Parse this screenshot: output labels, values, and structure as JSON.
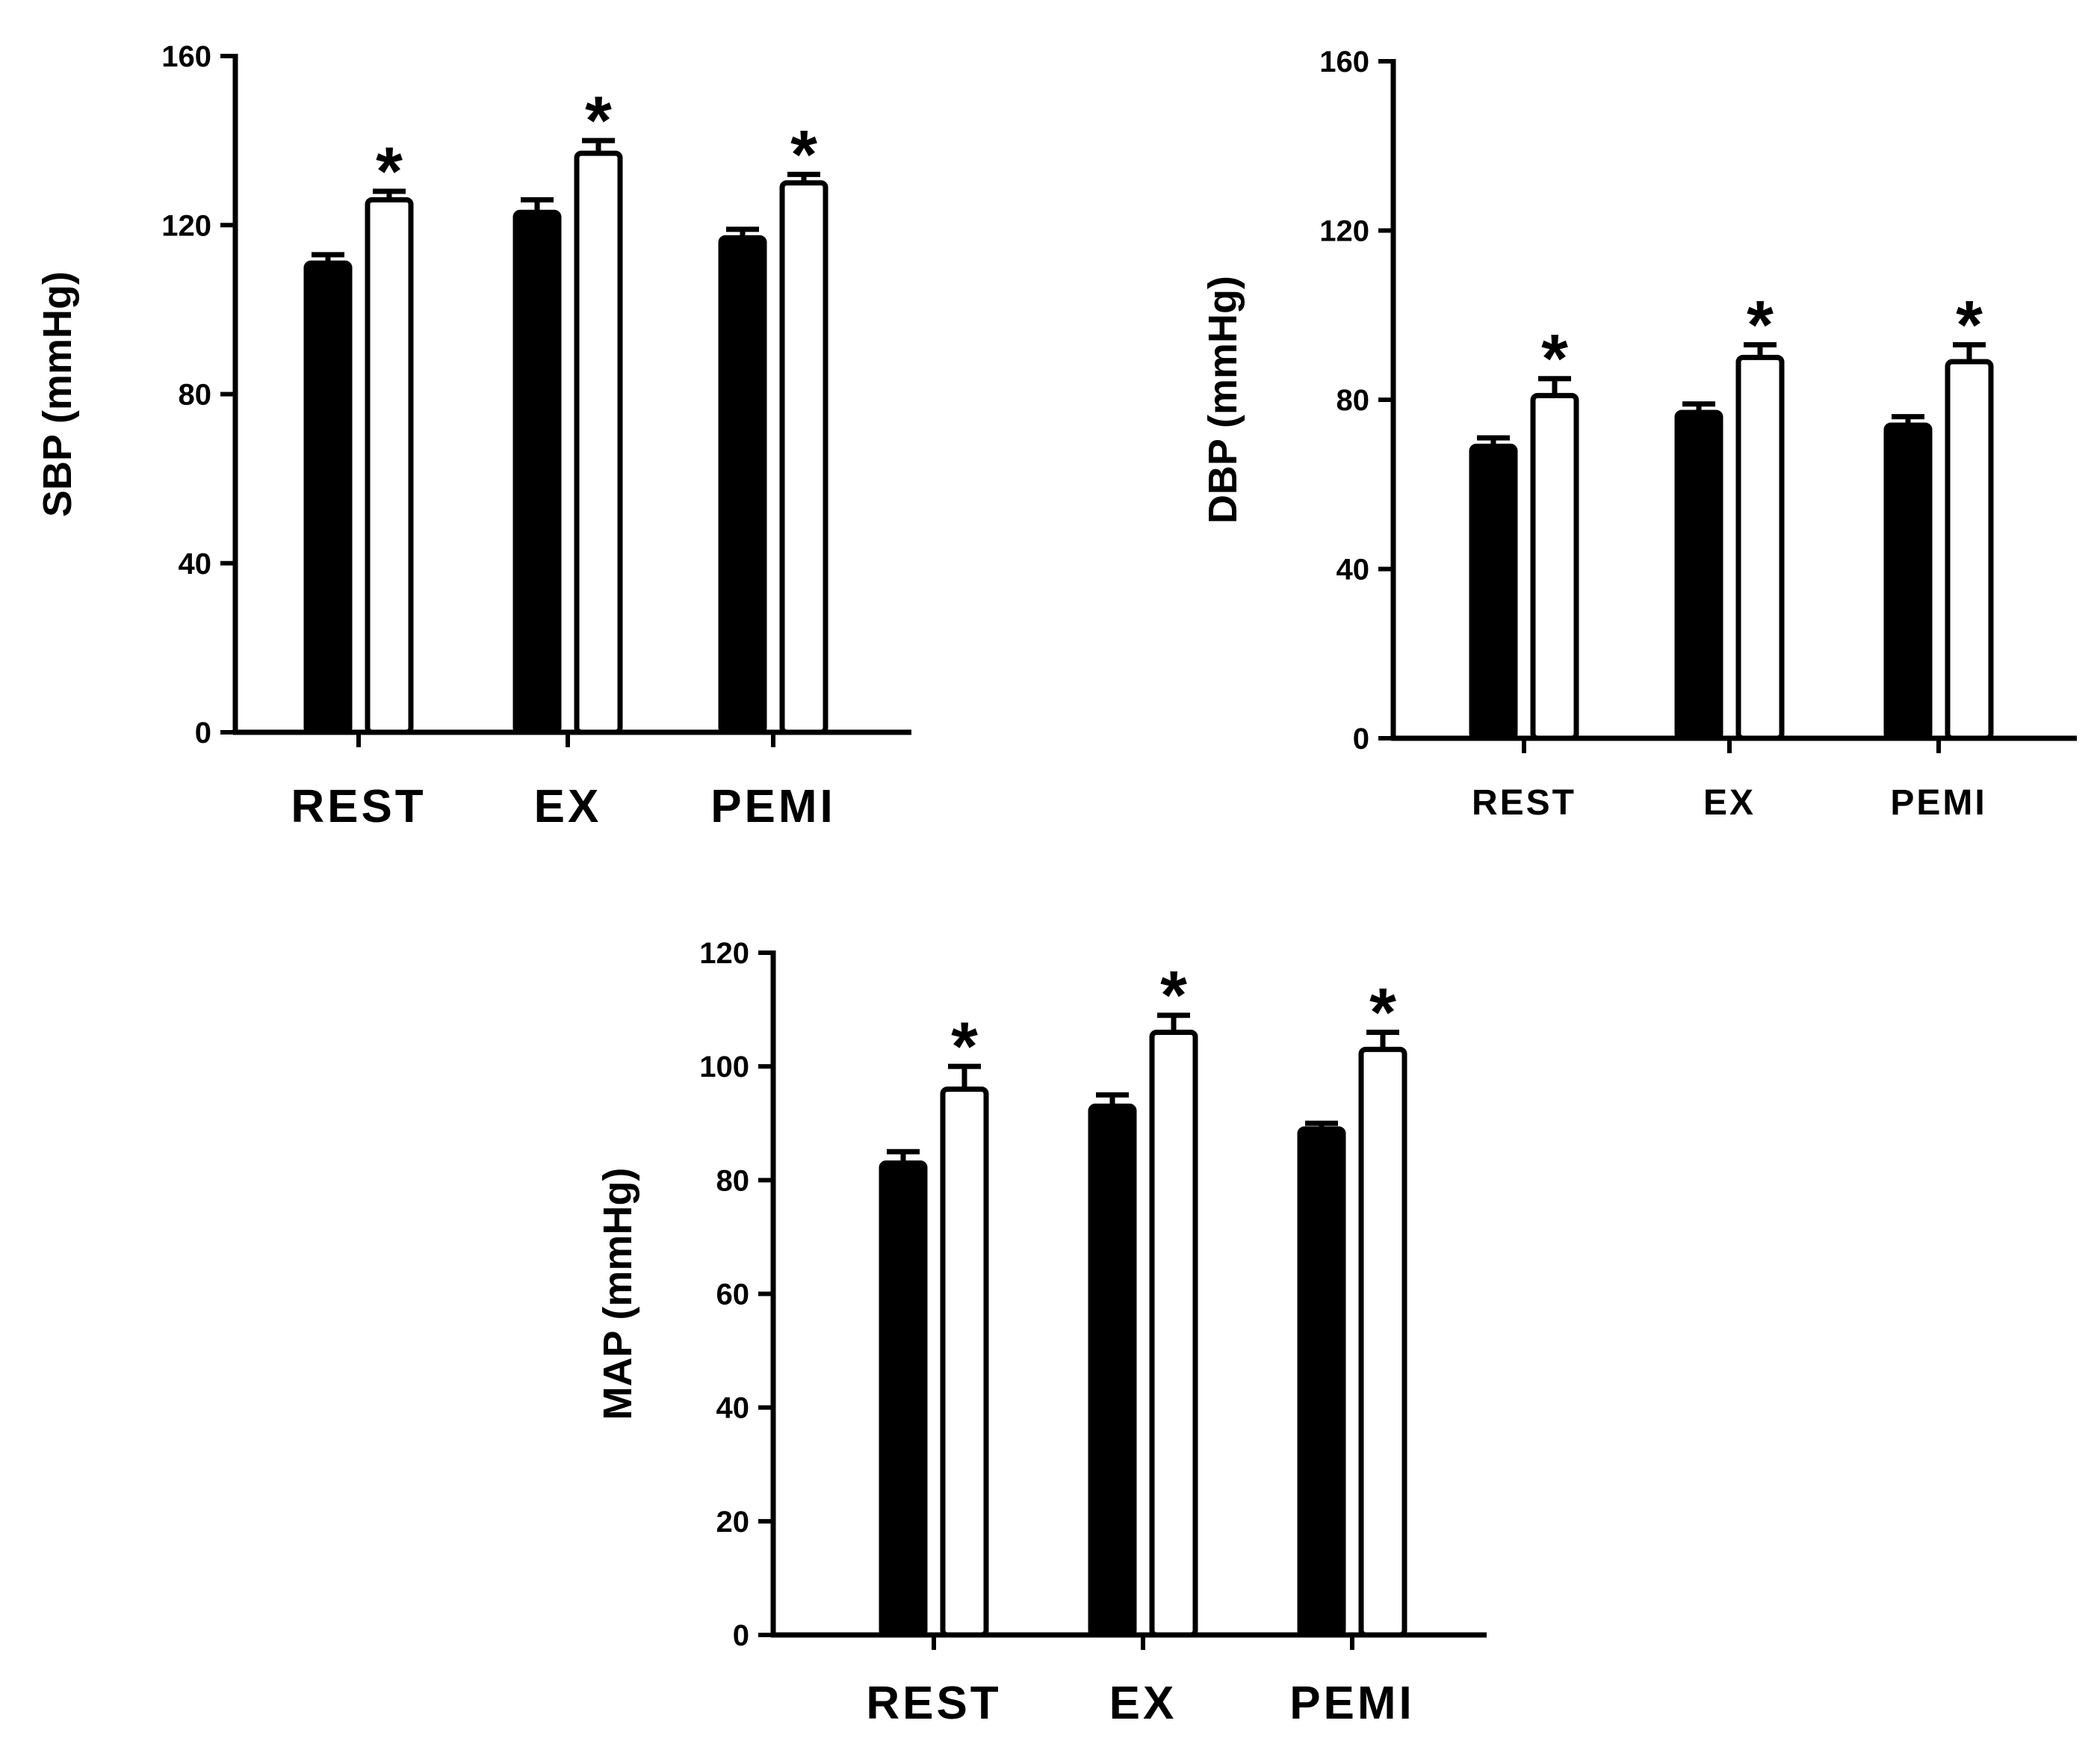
{
  "chart_data": [
    {
      "type": "bar",
      "panel": "top-left",
      "title": "",
      "xlabel": "",
      "ylabel": "SBP (mmHg)",
      "categories": [
        "REST",
        "EX",
        "PEMI"
      ],
      "ylim": [
        0,
        160
      ],
      "yticks": [
        0,
        40,
        80,
        120,
        160
      ],
      "series": [
        {
          "name": "group-filled",
          "fill": "#000000",
          "values": [
            111,
            123,
            117
          ],
          "errors": [
            2,
            3,
            2
          ]
        },
        {
          "name": "group-open",
          "fill": "#ffffff",
          "values": [
            126,
            137,
            130
          ],
          "errors": [
            2,
            3,
            2
          ]
        }
      ],
      "significance_marker": "*",
      "significant": [
        true,
        true,
        true
      ]
    },
    {
      "type": "bar",
      "panel": "top-right",
      "title": "",
      "xlabel": "",
      "ylabel": "DBP (mmHg)",
      "categories": [
        "REST",
        "EX",
        "PEMI"
      ],
      "ylim": [
        0,
        160
      ],
      "yticks": [
        0,
        40,
        80,
        120,
        160
      ],
      "series": [
        {
          "name": "group-filled",
          "fill": "#000000",
          "values": [
            69,
            77,
            74
          ],
          "errors": [
            2,
            2,
            2
          ]
        },
        {
          "name": "group-open",
          "fill": "#ffffff",
          "values": [
            81,
            90,
            89
          ],
          "errors": [
            4,
            3,
            4
          ]
        }
      ],
      "significance_marker": "*",
      "significant": [
        true,
        true,
        true
      ]
    },
    {
      "type": "bar",
      "panel": "bottom-center",
      "title": "",
      "xlabel": "",
      "ylabel": "MAP (mmHg)",
      "categories": [
        "REST",
        "EX",
        "PEMI"
      ],
      "ylim": [
        0,
        120
      ],
      "yticks": [
        0,
        20,
        40,
        60,
        80,
        100,
        120
      ],
      "series": [
        {
          "name": "group-filled",
          "fill": "#000000",
          "values": [
            83,
            93,
            89
          ],
          "errors": [
            2,
            2,
            1
          ]
        },
        {
          "name": "group-open",
          "fill": "#ffffff",
          "values": [
            96,
            106,
            103
          ],
          "errors": [
            4,
            3,
            3
          ]
        }
      ],
      "significance_marker": "*",
      "significant": [
        true,
        true,
        true
      ]
    }
  ]
}
